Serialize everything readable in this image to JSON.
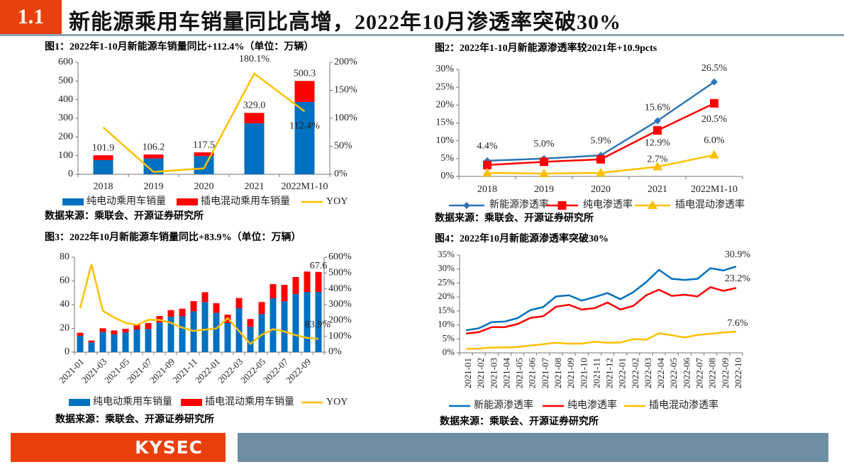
{
  "header": {
    "section": "1.1",
    "title": "新能源乘用车销量同比高增，2022年10月渗透率突破30%"
  },
  "footer": {
    "logo": "KYSEC"
  },
  "colors": {
    "accent": "#e8400c",
    "footer_bar": "#6e8fa3",
    "blue": "#0070c0",
    "red": "#ff0000",
    "yellow": "#ffc000"
  },
  "chart_data": [
    {
      "type": "bar",
      "stacked": true,
      "title": "图1：2022年1-10月新能源车销量同比+112.4%（单位：万辆）",
      "categories": [
        "2018",
        "2019",
        "2020",
        "2021",
        "2022M1-10"
      ],
      "ylim": [
        0,
        600
      ],
      "yticks": [
        0,
        100,
        200,
        300,
        400,
        500,
        600
      ],
      "ylim_right": [
        0,
        200
      ],
      "yticks_right": [
        "0%",
        "50%",
        "100%",
        "150%",
        "200%"
      ],
      "series": [
        {
          "name": "纯电动乘用车销量",
          "type": "bar",
          "color": "#0070c0",
          "values": [
            76.3,
            85.1,
            97.8,
            273.0,
            387.6
          ]
        },
        {
          "name": "插电混动乘用车销量",
          "type": "bar",
          "color": "#ff0000",
          "values": [
            25.6,
            21.1,
            19.7,
            56.0,
            112.7
          ]
        },
        {
          "name": "YOY",
          "type": "line",
          "axis": "right",
          "color": "#ffc000",
          "values": [
            83.9,
            4.2,
            10.6,
            180.1,
            112.4
          ]
        }
      ],
      "total_labels": [
        "101.9",
        "106.2",
        "117.5",
        "329.0",
        "500.3"
      ],
      "yoy_labels": [
        "",
        "",
        "",
        "180.1%",
        "112.4%"
      ],
      "legend": "bottom",
      "grid": false,
      "source": "数据来源：乘联会、开源证券研究所"
    },
    {
      "type": "line",
      "title": "图2：2022年1-10月新能源渗透率较2021年+10.9pcts",
      "categories": [
        "2018",
        "2019",
        "2020",
        "2021",
        "2022M1-10"
      ],
      "ylim": [
        0,
        30
      ],
      "yticks": [
        "0%",
        "5%",
        "10%",
        "15%",
        "20%",
        "25%",
        "30%"
      ],
      "series": [
        {
          "name": "新能源渗透率",
          "color": "#2e75b6",
          "marker": "diamond",
          "values": [
            4.4,
            5.0,
            5.9,
            15.6,
            26.5
          ],
          "labels": [
            "4.4%",
            "5.0%",
            "5.9%",
            "15.6%",
            "26.5%"
          ]
        },
        {
          "name": "纯电渗透率",
          "color": "#ff0000",
          "marker": "square",
          "values": [
            3.2,
            4.1,
            4.8,
            12.9,
            20.5
          ],
          "labels": [
            "",
            "",
            "",
            "12.9%",
            "20.5%"
          ]
        },
        {
          "name": "插电混动渗透率",
          "color": "#ffc000",
          "marker": "triangle",
          "values": [
            1.0,
            0.8,
            1.0,
            2.7,
            6.0
          ],
          "labels": [
            "",
            "",
            "",
            "2.7%",
            "6.0%"
          ]
        }
      ],
      "legend": "bottom",
      "grid": false,
      "source": "数据来源：乘联会、开源证券研究所"
    },
    {
      "type": "bar",
      "stacked": true,
      "title": "图3：2022年10月新能源车销量同比+83.9%（单位：万辆）",
      "categories": [
        "2021-01",
        "2021-02",
        "2021-03",
        "2021-04",
        "2021-05",
        "2021-06",
        "2021-07",
        "2021-08",
        "2021-09",
        "2021-10",
        "2021-11",
        "2021-12",
        "2022-01",
        "2022-02",
        "2022-03",
        "2022-04",
        "2022-05",
        "2022-06",
        "2022-07",
        "2022-08",
        "2022-09",
        "2022-10"
      ],
      "ylim": [
        0,
        80
      ],
      "yticks": [
        0,
        20,
        40,
        60,
        80
      ],
      "ylim_right": [
        0,
        600
      ],
      "yticks_right": [
        "0%",
        "100%",
        "200%",
        "300%",
        "400%",
        "500%",
        "600%"
      ],
      "series": [
        {
          "name": "纯电动乘用车销量",
          "type": "bar",
          "color": "#0070c0",
          "values": [
            13.7,
            8.2,
            16.9,
            14.9,
            16.5,
            19.1,
            19.5,
            24.9,
            29.9,
            30.2,
            34.4,
            42.2,
            33.2,
            24.5,
            37.0,
            21.3,
            32.2,
            45.4,
            42.8,
            49.0,
            50.7,
            50.7
          ]
        },
        {
          "name": "插电混动乘用车销量",
          "type": "bar",
          "color": "#ff0000",
          "values": [
            2.6,
            1.6,
            3.2,
            3.4,
            3.2,
            4.2,
            5.0,
            5.5,
            5.5,
            6.4,
            8.6,
            8.3,
            8.0,
            7.1,
            8.6,
            6.6,
            10.0,
            11.9,
            13.9,
            14.3,
            17.2,
            16.9
          ]
        },
        {
          "name": "YOY",
          "type": "line",
          "axis": "right",
          "color": "#ffc000",
          "values": [
            279,
            555,
            261,
            219,
            185,
            172,
            204,
            204,
            185,
            155,
            134,
            142,
            149,
            215,
            133,
            52,
            110,
            145,
            130,
            107,
            90,
            83.9
          ]
        }
      ],
      "annotations": {
        "last_total": "67.6",
        "last_yoy": "83.9%"
      },
      "legend": "bottom",
      "grid": false,
      "source": "数据来源：乘联会、开源证券研究所"
    },
    {
      "type": "line",
      "title": "图4：2022年10月新能源渗透率突破30%",
      "categories": [
        "2021-01",
        "2021-02",
        "2021-03",
        "2021-04",
        "2021-05",
        "2021-06",
        "2021-07",
        "2021-08",
        "2021-09",
        "2021-10",
        "2021-11",
        "2021-12",
        "2022-01",
        "2022-02",
        "2022-03",
        "2022-04",
        "2022-05",
        "2022-06",
        "2022-07",
        "2022-08",
        "2022-09",
        "2022-10"
      ],
      "ylim": [
        0,
        35
      ],
      "yticks": [
        "0%",
        "5%",
        "10%",
        "15%",
        "20%",
        "25%",
        "30%",
        "35%"
      ],
      "series": [
        {
          "name": "新能源渗透率",
          "color": "#0070c0",
          "values": [
            8.1,
            8.8,
            11.0,
            11.2,
            12.4,
            15.3,
            16.4,
            20.2,
            20.6,
            18.7,
            20.0,
            21.4,
            19.2,
            21.7,
            25.3,
            29.7,
            26.5,
            26.1,
            26.5,
            30.3,
            29.5,
            30.9
          ],
          "last_label": "30.9%"
        },
        {
          "name": "纯电渗透率",
          "color": "#ff0000",
          "values": [
            6.9,
            7.4,
            9.2,
            9.2,
            10.3,
            12.5,
            13.1,
            16.5,
            17.2,
            15.5,
            16.0,
            18.0,
            15.5,
            16.8,
            20.6,
            22.6,
            20.4,
            20.8,
            20.2,
            23.5,
            22.2,
            23.2
          ],
          "last_label": "23.2%"
        },
        {
          "name": "插电混动渗透率",
          "color": "#ffc000",
          "values": [
            1.4,
            1.5,
            1.9,
            1.9,
            2.1,
            2.6,
            3.1,
            3.6,
            3.3,
            3.3,
            4.0,
            3.6,
            3.7,
            4.9,
            4.7,
            7.0,
            6.3,
            5.5,
            6.4,
            6.8,
            7.3,
            7.6
          ],
          "last_label": "7.6%"
        }
      ],
      "legend": "bottom",
      "grid": false,
      "source": "数据来源：乘联会、开源证券研究所"
    }
  ]
}
